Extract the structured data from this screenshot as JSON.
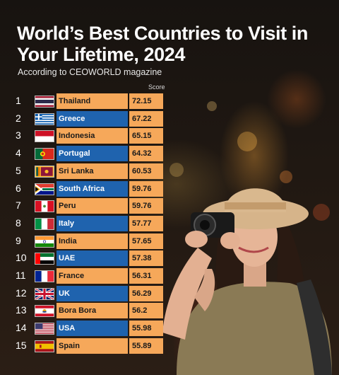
{
  "header": {
    "title": "World’s Best Countries to Visit in Your Lifetime, 2024",
    "subtitle": "According to CEOWORLD magazine",
    "score_label": "Score"
  },
  "chart_data": {
    "type": "table",
    "title": "World’s Best Countries to Visit in Your Lifetime, 2024",
    "subtitle": "According to CEOWORLD magazine",
    "columns": [
      "",
      "",
      "Score"
    ],
    "rows": [
      {
        "rank": "1",
        "country": "Thailand",
        "score": "72.15",
        "flag": "thailand-flag"
      },
      {
        "rank": "2",
        "country": "Greece",
        "score": "67.22",
        "flag": "greece-flag"
      },
      {
        "rank": "3",
        "country": "Indonesia",
        "score": "65.15",
        "flag": "indonesia-flag"
      },
      {
        "rank": "4",
        "country": "Portugal",
        "score": "64.32",
        "flag": "portugal-flag"
      },
      {
        "rank": "5",
        "country": "Sri Lanka",
        "score": "60.53",
        "flag": "sri-lanka-flag"
      },
      {
        "rank": "6",
        "country": "South Africa",
        "score": "59.76",
        "flag": "south-africa-flag"
      },
      {
        "rank": "7",
        "country": "Peru",
        "score": "59.76",
        "flag": "peru-flag"
      },
      {
        "rank": "8",
        "country": "Italy",
        "score": "57.77",
        "flag": "italy-flag"
      },
      {
        "rank": "9",
        "country": "India",
        "score": "57.65",
        "flag": "india-flag"
      },
      {
        "rank": "10",
        "country": "UAE",
        "score": "57.38",
        "flag": "uae-flag"
      },
      {
        "rank": "11",
        "country": "France",
        "score": "56.31",
        "flag": "france-flag"
      },
      {
        "rank": "12",
        "country": "UK",
        "score": "56.29",
        "flag": "uk-flag"
      },
      {
        "rank": "13",
        "country": "Bora Bora",
        "score": "56.2",
        "flag": "bora-bora-flag"
      },
      {
        "rank": "14",
        "country": "USA",
        "score": "55.98",
        "flag": "usa-flag"
      },
      {
        "rank": "15",
        "country": "Spain",
        "score": "55.89",
        "flag": "spain-flag"
      }
    ]
  },
  "colors": {
    "orange": "#f6a85a",
    "blue": "#1f63ae",
    "background": "#1c1612",
    "text": "#ffffff"
  }
}
